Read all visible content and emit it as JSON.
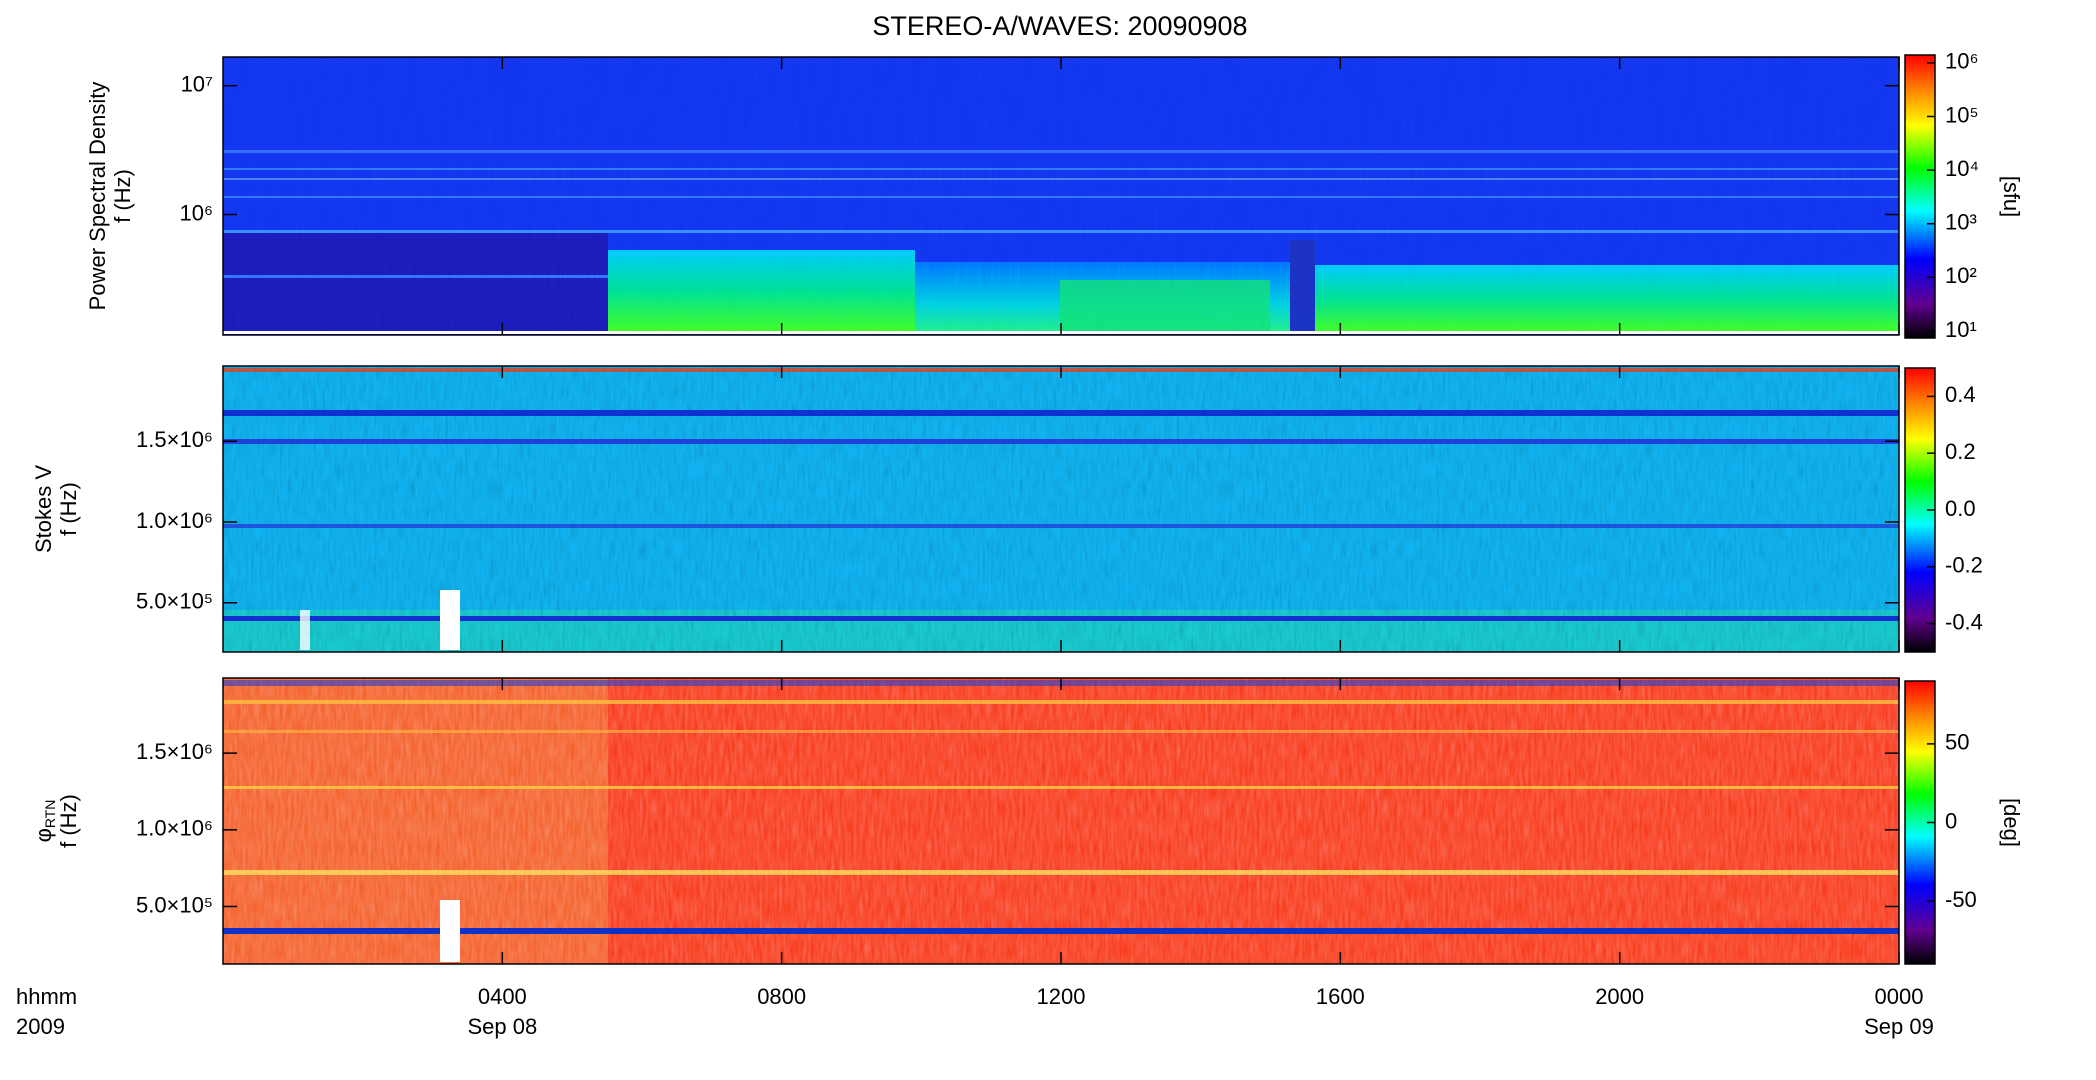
{
  "chart_data": [
    {
      "type": "spectrogram",
      "title": "STEREO-A/WAVES: 20090908",
      "ylabel": "Power Spectral Density",
      "ylabel2": "f (Hz)",
      "log_y": true,
      "ylim": [
        116000,
        16700000
      ],
      "yticks": [
        {
          "value": 1000000,
          "label": "10⁶"
        },
        {
          "value": 10000000,
          "label": "10⁷"
        }
      ],
      "colorbar": {
        "label": "[sfu]",
        "log": true,
        "zlim": [
          7.4,
          1400000
        ],
        "zticks": [
          {
            "value": 10,
            "label": "10¹"
          },
          {
            "value": 100,
            "label": "10²"
          },
          {
            "value": 1000,
            "label": "10³"
          },
          {
            "value": 10000,
            "label": "10⁴"
          },
          {
            "value": 100000,
            "label": "10⁵"
          },
          {
            "value": 1000000,
            "label": "10⁶"
          }
        ]
      }
    },
    {
      "type": "spectrogram",
      "ylabel": "Stokes V",
      "ylabel2": "f (Hz)",
      "log_y": false,
      "ylim": [
        195000,
        1966000
      ],
      "yticks": [
        {
          "value": 500000,
          "label": "5.0×10⁵"
        },
        {
          "value": 1000000,
          "label": "1.0×10⁶"
        },
        {
          "value": 1500000,
          "label": "1.5×10⁶"
        }
      ],
      "colorbar": {
        "log": false,
        "zlim": [
          -0.5,
          0.5
        ],
        "zticks": [
          -0.4,
          -0.2,
          {
            "value": 0,
            "label": "0.0"
          },
          0.2,
          0.4
        ]
      }
    },
    {
      "type": "spectrogram",
      "ylabel": "φ",
      "ylabel_sub": "RTN",
      "ylabel2": "f (Hz)",
      "log_y": false,
      "ylim": [
        125000,
        1990000
      ],
      "yticks": [
        {
          "value": 500000,
          "label": "5.0×10⁵"
        },
        {
          "value": 1000000,
          "label": "1.0×10⁶"
        },
        {
          "value": 1500000,
          "label": "1.5×10⁶"
        }
      ],
      "colorbar": {
        "label": "[deg]",
        "log": false,
        "zlim": [
          -90,
          90
        ],
        "zticks": [
          -50,
          0,
          50
        ]
      },
      "xlim": [
        0,
        24
      ],
      "xticks": [
        {
          "value": 4,
          "label": "0400"
        },
        {
          "value": 8,
          "label": "0800"
        },
        {
          "value": 12,
          "label": "1200"
        },
        {
          "value": 16,
          "label": "1600"
        },
        {
          "value": 20,
          "label": "2000"
        },
        {
          "value": 24,
          "label": "0000"
        }
      ],
      "date_labels": [
        {
          "value": 4,
          "label": "Sep 08"
        },
        {
          "value": 24,
          "label": "Sep 09"
        }
      ],
      "time_label": "hhmm",
      "year_label": "2009"
    }
  ]
}
